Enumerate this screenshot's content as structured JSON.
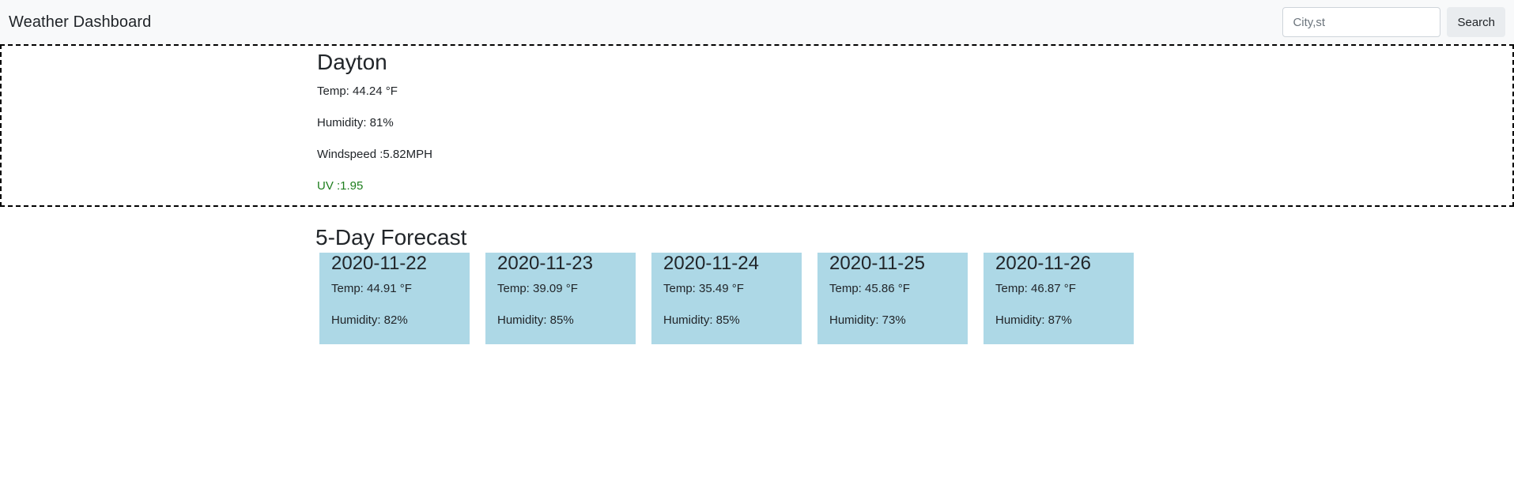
{
  "navbar": {
    "brand": "Weather Dashboard",
    "search": {
      "placeholder": "City,st",
      "value": ""
    },
    "search_button_label": "Search"
  },
  "current": {
    "city": "Dayton",
    "temp": "Temp: 44.24 °F",
    "humidity": "Humidity: 81%",
    "windspeed": "Windspeed :5.82MPH",
    "uv": "UV :1.95",
    "uv_color": "#1e7e1e"
  },
  "forecast": {
    "title": "5-Day Forecast",
    "card_color": "#add8e6",
    "days": [
      {
        "date": "2020-11-22",
        "temp": "Temp: 44.91 °F",
        "humidity": "Humidity: 82%"
      },
      {
        "date": "2020-11-23",
        "temp": "Temp: 39.09 °F",
        "humidity": "Humidity: 85%"
      },
      {
        "date": "2020-11-24",
        "temp": "Temp: 35.49 °F",
        "humidity": "Humidity: 85%"
      },
      {
        "date": "2020-11-25",
        "temp": "Temp: 45.86 °F",
        "humidity": "Humidity: 73%"
      },
      {
        "date": "2020-11-26",
        "temp": "Temp: 46.87 °F",
        "humidity": "Humidity: 87%"
      }
    ]
  }
}
